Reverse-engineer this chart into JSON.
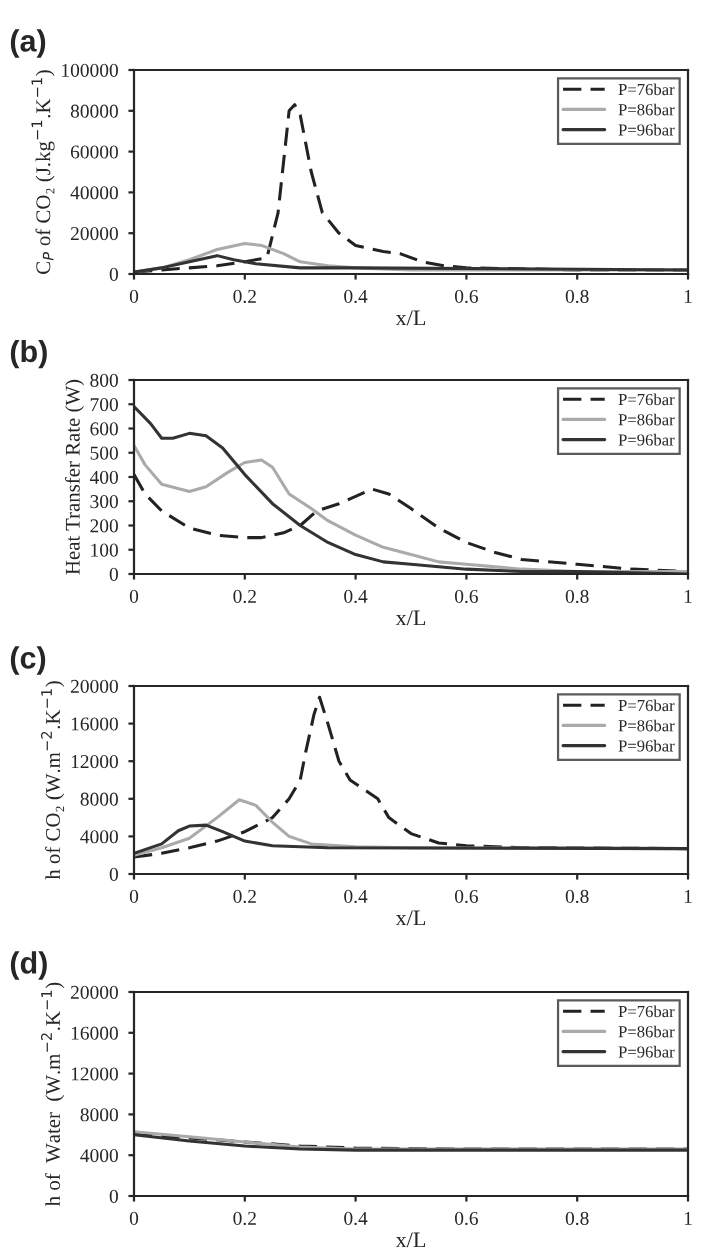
{
  "chart_data": [
    {
      "type": "line",
      "title": "(a)",
      "xlabel": "x/L",
      "ylabel": "C$_{P}$ of CO₂ (J.kg$^{−1}$.K$^{−1}$)",
      "xlim": [
        0,
        1
      ],
      "ylim": [
        0,
        100000
      ],
      "xticks": [
        0,
        0.2,
        0.4,
        0.6,
        0.8,
        1
      ],
      "yticks": [
        0,
        20000,
        40000,
        60000,
        80000,
        100000
      ],
      "grid": false,
      "legend": "top right",
      "marker": "none",
      "series": [
        {
          "name": "P=76bar",
          "color": "#222222",
          "line_style": "dashed",
          "x": [
            0,
            0.05,
            0.1,
            0.15,
            0.2,
            0.24,
            0.26,
            0.28,
            0.29,
            0.3,
            0.32,
            0.34,
            0.37,
            0.4,
            0.45,
            0.48,
            0.52,
            0.56,
            0.6,
            0.8,
            1
          ],
          "values": [
            1000,
            2000,
            3000,
            4000,
            6000,
            8000,
            30000,
            80000,
            83000,
            78000,
            50000,
            30000,
            20000,
            14000,
            11000,
            10000,
            6000,
            4000,
            3000,
            2000,
            2000
          ]
        },
        {
          "name": "P=86bar",
          "color": "#aaaaaa",
          "line_style": "solid",
          "x": [
            0,
            0.05,
            0.1,
            0.15,
            0.2,
            0.23,
            0.27,
            0.3,
            0.35,
            0.4,
            0.5,
            1
          ],
          "values": [
            1000,
            3000,
            7000,
            12000,
            15000,
            14000,
            10000,
            6000,
            4000,
            3000,
            2000,
            2000
          ]
        },
        {
          "name": "P=96bar",
          "color": "#333333",
          "line_style": "solid",
          "x": [
            0,
            0.05,
            0.1,
            0.15,
            0.18,
            0.22,
            0.3,
            0.4,
            1
          ],
          "values": [
            1000,
            3000,
            6000,
            9000,
            7000,
            5000,
            3000,
            3000,
            2000
          ]
        }
      ]
    },
    {
      "type": "line",
      "title": "(b)",
      "xlabel": "x/L",
      "ylabel": "Heat Transfer Rate (W)",
      "xlim": [
        0,
        1
      ],
      "ylim": [
        0,
        800
      ],
      "xticks": [
        0,
        0.2,
        0.4,
        0.6,
        0.8,
        1
      ],
      "yticks": [
        0,
        100,
        200,
        300,
        400,
        500,
        600,
        700,
        800
      ],
      "grid": false,
      "legend": "top right",
      "marker": "none",
      "series": [
        {
          "name": "P=76bar",
          "color": "#222222",
          "line_style": "dashed",
          "x": [
            0,
            0.02,
            0.05,
            0.1,
            0.15,
            0.2,
            0.23,
            0.27,
            0.3,
            0.33,
            0.37,
            0.4,
            0.43,
            0.46,
            0.5,
            0.55,
            0.6,
            0.65,
            0.7,
            0.8,
            0.9,
            1
          ],
          "values": [
            410,
            330,
            260,
            190,
            160,
            150,
            150,
            170,
            200,
            260,
            290,
            320,
            350,
            330,
            270,
            190,
            130,
            90,
            60,
            40,
            20,
            10
          ]
        },
        {
          "name": "P=86bar",
          "color": "#aaaaaa",
          "line_style": "solid",
          "x": [
            0,
            0.02,
            0.05,
            0.1,
            0.13,
            0.17,
            0.2,
            0.23,
            0.25,
            0.28,
            0.32,
            0.35,
            0.4,
            0.45,
            0.5,
            0.55,
            0.6,
            0.7,
            0.8,
            1
          ],
          "values": [
            530,
            450,
            370,
            340,
            360,
            420,
            460,
            470,
            440,
            330,
            270,
            220,
            160,
            110,
            80,
            50,
            40,
            20,
            10,
            10
          ]
        },
        {
          "name": "P=96bar",
          "color": "#333333",
          "line_style": "solid",
          "x": [
            0,
            0.03,
            0.05,
            0.07,
            0.1,
            0.13,
            0.16,
            0.2,
            0.25,
            0.3,
            0.35,
            0.4,
            0.45,
            0.5,
            0.6,
            0.7,
            0.8,
            1
          ],
          "values": [
            690,
            620,
            560,
            560,
            580,
            570,
            520,
            410,
            290,
            200,
            130,
            80,
            50,
            40,
            20,
            10,
            10,
            0
          ]
        }
      ]
    },
    {
      "type": "line",
      "title": "(c)",
      "xlabel": "x/L",
      "ylabel": "h of CO₂ (W.m$^{−2}$.K$^{−1}$)",
      "xlim": [
        0,
        1
      ],
      "ylim": [
        0,
        20000
      ],
      "xticks": [
        0,
        0.2,
        0.4,
        0.6,
        0.8,
        1
      ],
      "yticks": [
        0,
        4000,
        8000,
        12000,
        16000,
        20000
      ],
      "grid": false,
      "legend": "top right",
      "marker": "none",
      "series": [
        {
          "name": "P=76bar",
          "color": "#222222",
          "line_style": "dashed",
          "x": [
            0,
            0.05,
            0.1,
            0.15,
            0.2,
            0.25,
            0.28,
            0.3,
            0.31,
            0.325,
            0.335,
            0.35,
            0.37,
            0.39,
            0.42,
            0.44,
            0.46,
            0.5,
            0.55,
            0.6,
            0.7,
            1
          ],
          "values": [
            1800,
            2200,
            2800,
            3500,
            4500,
            6000,
            8000,
            10000,
            13000,
            17000,
            18800,
            16000,
            12000,
            10000,
            8800,
            8000,
            6000,
            4300,
            3300,
            3000,
            2800,
            2700
          ]
        },
        {
          "name": "P=86bar",
          "color": "#aaaaaa",
          "line_style": "solid",
          "x": [
            0,
            0.05,
            0.1,
            0.15,
            0.19,
            0.22,
            0.25,
            0.28,
            0.32,
            0.4,
            0.5,
            1
          ],
          "values": [
            2000,
            2800,
            3800,
            6000,
            7900,
            7300,
            5500,
            4000,
            3200,
            2900,
            2800,
            2700
          ]
        },
        {
          "name": "P=96bar",
          "color": "#333333",
          "line_style": "solid",
          "x": [
            0,
            0.05,
            0.08,
            0.1,
            0.13,
            0.16,
            0.2,
            0.25,
            0.35,
            1
          ],
          "values": [
            2200,
            3200,
            4600,
            5100,
            5200,
            4500,
            3500,
            3000,
            2800,
            2700
          ]
        }
      ]
    },
    {
      "type": "line",
      "title": "(d)",
      "xlabel": "x/L",
      "ylabel": "h of  Water  (W.m$^{−2}$.K$^{−1}$)",
      "xlim": [
        0,
        1
      ],
      "ylim": [
        0,
        20000
      ],
      "xticks": [
        0,
        0.2,
        0.4,
        0.6,
        0.8,
        1
      ],
      "yticks": [
        0,
        4000,
        8000,
        12000,
        16000,
        20000
      ],
      "grid": false,
      "legend": "top right",
      "marker": "none",
      "series": [
        {
          "name": "P=76bar",
          "color": "#222222",
          "line_style": "dashed",
          "x": [
            0,
            0.1,
            0.2,
            0.3,
            0.4,
            0.6,
            1
          ],
          "values": [
            6100,
            5700,
            5300,
            4900,
            4700,
            4600,
            4600
          ]
        },
        {
          "name": "P=86bar",
          "color": "#aaaaaa",
          "line_style": "solid",
          "x": [
            0,
            0.1,
            0.2,
            0.3,
            0.4,
            1
          ],
          "values": [
            6300,
            5800,
            5300,
            4800,
            4600,
            4600
          ]
        },
        {
          "name": "P=96bar",
          "color": "#333333",
          "line_style": "solid",
          "x": [
            0,
            0.1,
            0.2,
            0.3,
            0.4,
            1
          ],
          "values": [
            6000,
            5400,
            4900,
            4600,
            4500,
            4500
          ]
        }
      ]
    }
  ]
}
